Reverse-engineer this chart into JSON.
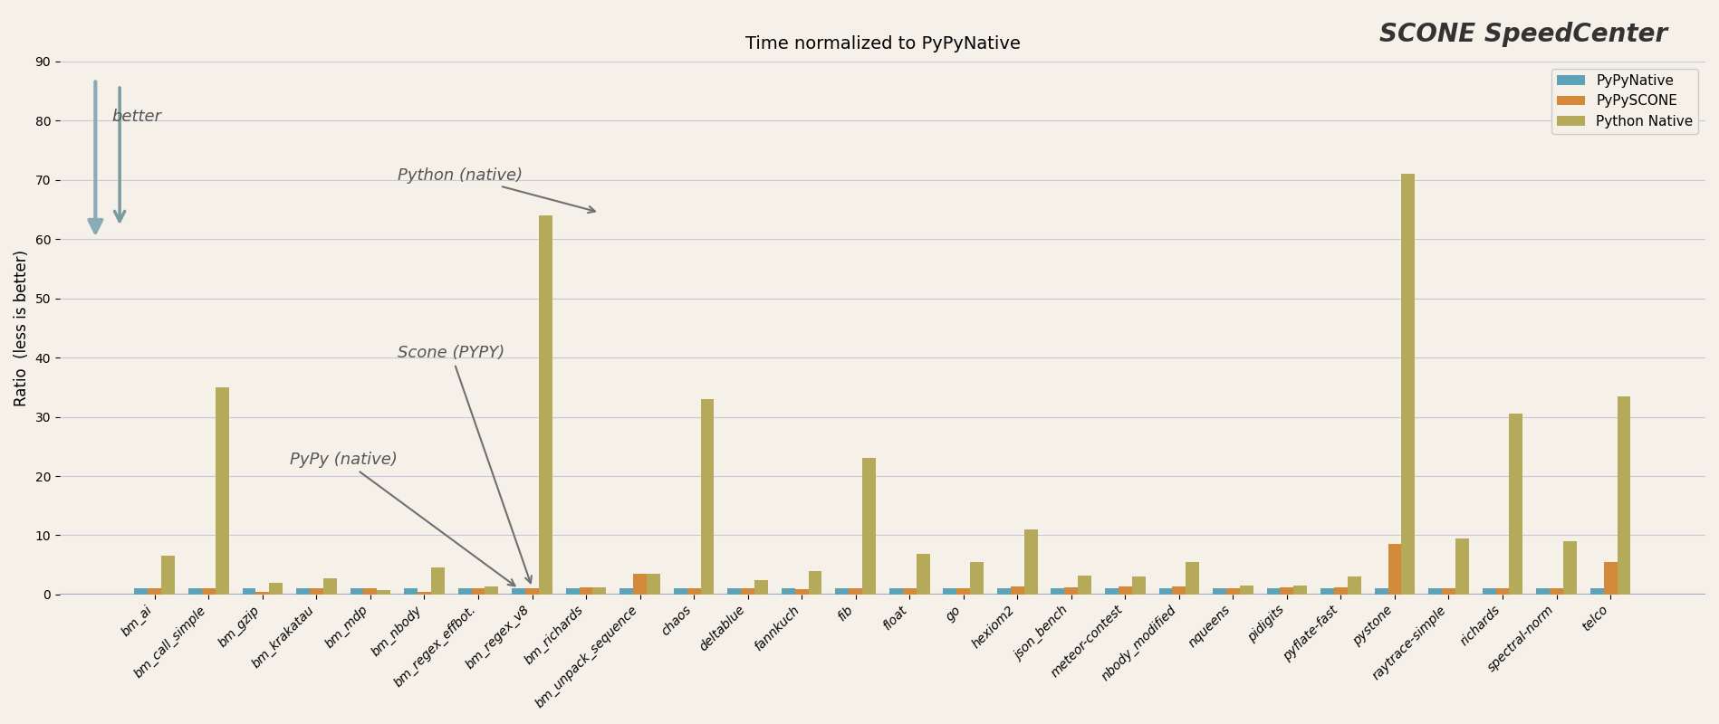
{
  "title": "Time normalized to PyPyNative",
  "title2": "SCONE SpeedCenter",
  "ylabel": "Ratio  (less is better)",
  "ylim": [
    0,
    90
  ],
  "yticks": [
    0,
    10,
    20,
    30,
    40,
    50,
    60,
    70,
    80,
    90
  ],
  "background_color": "#f5f0e8",
  "plot_background": "#f5f0e8",
  "grid_color": "#c8c8d8",
  "categories": [
    "bm_ai",
    "bm_call_simple",
    "bm_gzip",
    "bm_krakatau",
    "bm_mdp",
    "bm_nbody",
    "bm_regex_effbot.",
    "bm_regex_v8",
    "bm_richards",
    "bm_unpack_sequence",
    "chaos",
    "deltablue",
    "fannkuch",
    "fib",
    "float",
    "go",
    "hexiom2",
    "json_bench",
    "meteor-contest",
    "nbody_modified",
    "nqueens",
    "pidigits",
    "pyflate-fast",
    "pystone",
    "raytrace-simple",
    "richards",
    "spectral-norm",
    "telco"
  ],
  "pypynative": [
    1.0,
    1.0,
    1.0,
    1.0,
    1.0,
    1.0,
    1.0,
    1.0,
    1.0,
    1.0,
    1.0,
    1.0,
    1.0,
    1.0,
    1.0,
    1.0,
    1.0,
    1.0,
    1.0,
    1.0,
    1.0,
    1.0,
    1.0,
    1.0,
    1.0,
    1.0,
    1.0,
    1.0
  ],
  "pypyscone": [
    1.0,
    1.0,
    0.4,
    1.0,
    1.0,
    0.4,
    1.0,
    1.0,
    1.2,
    3.5,
    1.0,
    1.1,
    0.9,
    1.0,
    1.0,
    1.0,
    1.3,
    1.2,
    1.3,
    1.3,
    1.1,
    1.2,
    1.2,
    8.5,
    1.1,
    1.0,
    1.0,
    5.5
  ],
  "pythonnative": [
    6.5,
    35.0,
    2.0,
    2.8,
    0.8,
    4.5,
    1.3,
    64.0,
    1.2,
    3.5,
    33.0,
    2.5,
    4.0,
    23.0,
    6.8,
    5.5,
    11.0,
    3.2,
    3.0,
    5.5,
    1.5,
    1.5,
    3.0,
    71.0,
    9.5,
    30.5,
    9.0,
    33.5
  ],
  "color_pypynative": "#5ba3b8",
  "color_pypyscone": "#d4883a",
  "color_pythonnative": "#b5a95a",
  "arrow_color": "#707070",
  "annot_fontsize": 13,
  "legend_labels": [
    "PyPyNative",
    "PyPySCONE",
    "Python Native"
  ]
}
